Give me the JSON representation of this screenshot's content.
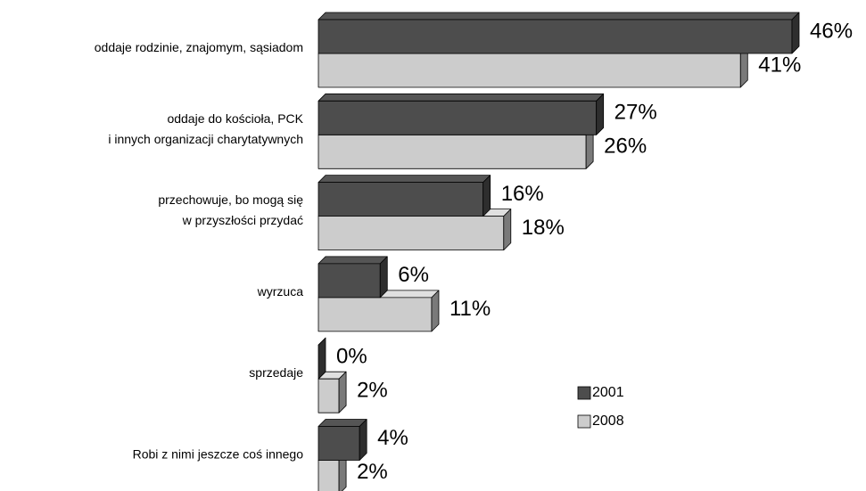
{
  "chart_data": {
    "type": "bar3d_horizontal",
    "categories": [
      "oddaje rodzinie, znajomym, sąsiadom",
      "oddaje do kościoła, PCK\ni innych organizacji charytatywnych",
      "przechowuje, bo mogą się\nw przyszłości przydać",
      "wyrzuca",
      "sprzedaje",
      "Robi z nimi jeszcze coś innego"
    ],
    "series": [
      {
        "name": "2001",
        "color": "#4d4d4d",
        "values": [
          46,
          27,
          16,
          6,
          0,
          4
        ],
        "value_labels": [
          "46%",
          "27%",
          "16%",
          "6%",
          "0%",
          "4%"
        ]
      },
      {
        "name": "2008",
        "color": "#cccccc",
        "values": [
          41,
          26,
          18,
          11,
          2,
          2
        ],
        "value_labels": [
          "41%",
          "26%",
          "18%",
          "11%",
          "2%",
          "2%"
        ]
      }
    ],
    "legend": "right"
  }
}
